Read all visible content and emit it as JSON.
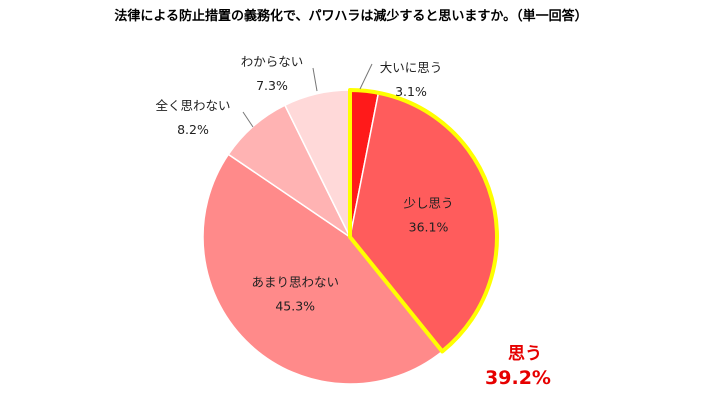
{
  "chart_data": {
    "type": "pie",
    "title": "法律による防止措置の義務化で、パワハラは減少すると思いますか。（単一回答）",
    "slices": [
      {
        "label": "大いに思う",
        "value": 3.1,
        "value_label": "3.1%",
        "color": "#ff1a1a"
      },
      {
        "label": "少し思う",
        "value": 36.1,
        "value_label": "36.1%",
        "color": "#ff5c5c"
      },
      {
        "label": "あまり思わない",
        "value": 45.3,
        "value_label": "45.3%",
        "color": "#ff8a8a"
      },
      {
        "label": "全く思わない",
        "value": 8.2,
        "value_label": "8.2%",
        "color": "#ffb3b3"
      },
      {
        "label": "わからない",
        "value": 7.3,
        "value_label": "7.3%",
        "color": "#ffd9d9"
      }
    ],
    "start": "top",
    "direction": "clockwise",
    "highlight": {
      "label": "思う",
      "value": 39.2,
      "value_label": "39.2%",
      "outline_color": "#ffff00",
      "text_color": "#e60000"
    }
  }
}
